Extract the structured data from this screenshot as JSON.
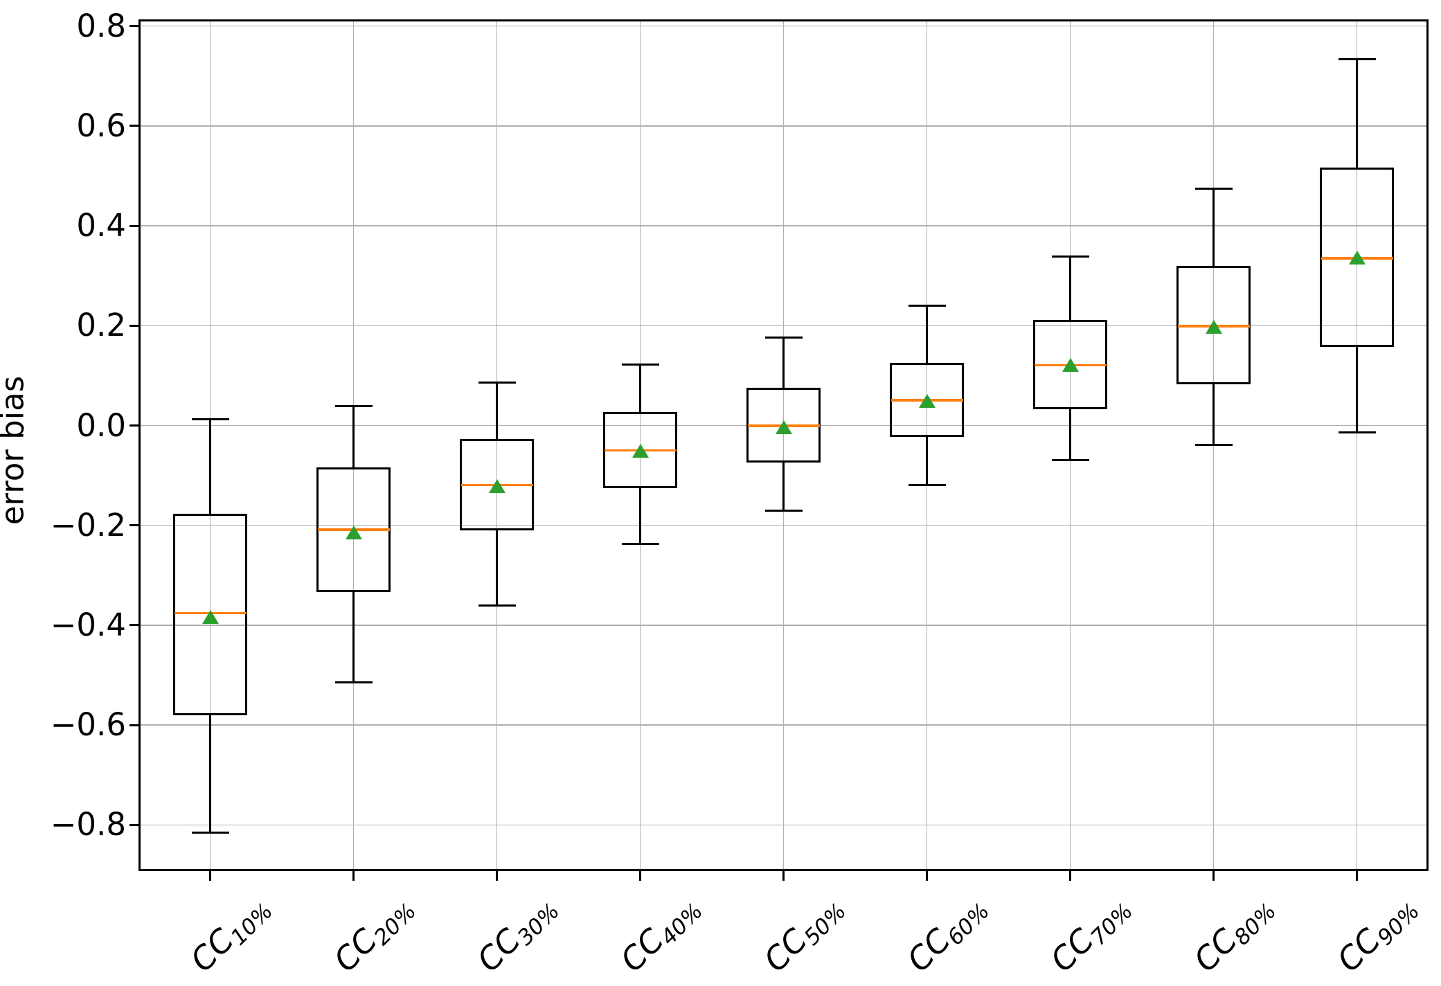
{
  "chart_data": {
    "type": "boxplot",
    "title": "",
    "xlabel": "",
    "ylabel": "error bias",
    "grid": true,
    "legend": false,
    "ylim": [
      -0.89,
      0.81
    ],
    "y_ticks": {
      "values": [
        0.8,
        0.6,
        0.4,
        0.2,
        0.0,
        -0.2,
        -0.4,
        -0.6,
        -0.8
      ],
      "labels": [
        "0.8",
        "0.6",
        "0.4",
        "0.2",
        "0.0",
        "−0.2",
        "−0.4",
        "−0.6",
        "−0.8"
      ]
    },
    "categories": [
      {
        "base": "CC",
        "sub": "10%"
      },
      {
        "base": "CC",
        "sub": "20%"
      },
      {
        "base": "CC",
        "sub": "30%"
      },
      {
        "base": "CC",
        "sub": "40%"
      },
      {
        "base": "CC",
        "sub": "50%"
      },
      {
        "base": "CC",
        "sub": "60%"
      },
      {
        "base": "CC",
        "sub": "70%"
      },
      {
        "base": "CC",
        "sub": "80%"
      },
      {
        "base": "CC",
        "sub": "90%"
      }
    ],
    "series": [
      {
        "name": "CC10%",
        "whisker_low": -0.815,
        "q1": -0.578,
        "median": -0.376,
        "mean": -0.383,
        "q3": -0.179,
        "whisker_high": 0.012
      },
      {
        "name": "CC20%",
        "whisker_low": -0.515,
        "q1": -0.331,
        "median": -0.209,
        "mean": -0.214,
        "q3": -0.086,
        "whisker_high": 0.039
      },
      {
        "name": "CC30%",
        "whisker_low": -0.36,
        "q1": -0.208,
        "median": -0.119,
        "mean": -0.121,
        "q3": -0.029,
        "whisker_high": 0.086
      },
      {
        "name": "CC40%",
        "whisker_low": -0.237,
        "q1": -0.124,
        "median": -0.05,
        "mean": -0.051,
        "q3": 0.025,
        "whisker_high": 0.122
      },
      {
        "name": "CC50%",
        "whisker_low": -0.171,
        "q1": -0.072,
        "median": -0.001,
        "mean": -0.004,
        "q3": 0.074,
        "whisker_high": 0.176
      },
      {
        "name": "CC60%",
        "whisker_low": -0.119,
        "q1": -0.021,
        "median": 0.051,
        "mean": 0.049,
        "q3": 0.124,
        "whisker_high": 0.24
      },
      {
        "name": "CC70%",
        "whisker_low": -0.069,
        "q1": 0.035,
        "median": 0.121,
        "mean": 0.121,
        "q3": 0.209,
        "whisker_high": 0.339
      },
      {
        "name": "CC80%",
        "whisker_low": -0.039,
        "q1": 0.085,
        "median": 0.199,
        "mean": 0.198,
        "q3": 0.318,
        "whisker_high": 0.474
      },
      {
        "name": "CC90%",
        "whisker_low": -0.014,
        "q1": 0.159,
        "median": 0.335,
        "mean": 0.336,
        "q3": 0.514,
        "whisker_high": 0.734
      }
    ],
    "style": {
      "median_color": "#ff7f0e",
      "mean_marker_color": "#2ca02c",
      "mean_marker": "triangle-up",
      "box_color": "#000000",
      "grid_color": "#b0b0b0",
      "background": "#ffffff"
    }
  }
}
